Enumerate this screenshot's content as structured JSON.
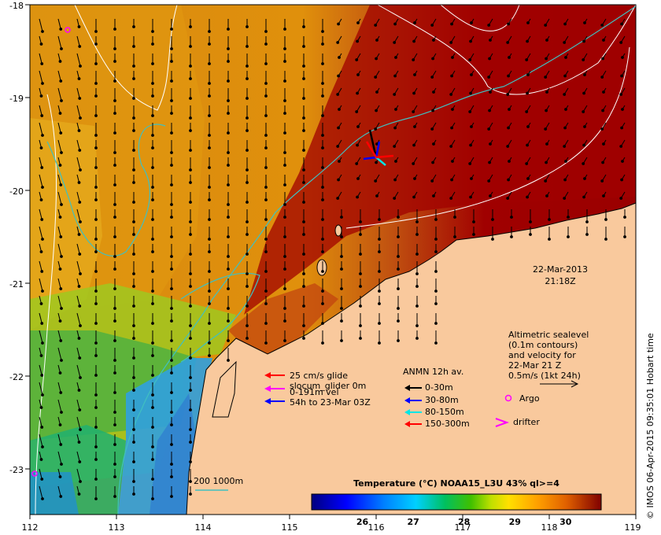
{
  "map": {
    "lon_ticks": [
      "112",
      "113",
      "114",
      "115",
      "116",
      "117",
      "118",
      "119"
    ],
    "lat_ticks": [
      "-18",
      "-19",
      "-20",
      "-21",
      "-22",
      "-23"
    ],
    "lon_range": [
      112,
      119
    ],
    "lat_range": [
      -18,
      -23.5
    ]
  },
  "timestamp": {
    "date": "22-Mar-2013",
    "time": "21:18Z"
  },
  "colorbar": {
    "title": "Temperature (°C) NOAA15_L3U 43% ql>=4",
    "range": [
      25,
      30.7
    ],
    "ticks": [
      "26",
      "27",
      "28",
      "29",
      "30"
    ]
  },
  "legend_glider": {
    "lines": [
      "25 cm/s glide",
      "slocum_glider 0m",
      "0-191m vel",
      "54h to 23-Mar 03Z"
    ]
  },
  "legend_anmn": {
    "title": "ANMN 12h av.",
    "items": [
      "0-30m",
      "30-80m",
      "80-150m",
      "150-300m"
    ]
  },
  "legend_alt": {
    "lines": [
      "Altimetric sealevel",
      "(0.1m contours)",
      "and velocity for",
      "22-Mar 21 Z",
      "0.5m/s (1kt 24h)"
    ]
  },
  "legend_markers": {
    "argo": "Argo",
    "drifter": "drifter"
  },
  "isobath_label": "200  1000m",
  "credit": "© IMOS 06-Apr-2015 09:35:01 Hobart time",
  "colors": {
    "land": "#f9c99d",
    "arrow_0_30": "#000000",
    "arrow_30_80": "#0000ff",
    "arrow_80_150": "#00e5e5",
    "arrow_150_300": "#ff0000",
    "glider": "#ff00ff",
    "isobath": "#40c0c0",
    "sla_contour": "#ffffff"
  }
}
